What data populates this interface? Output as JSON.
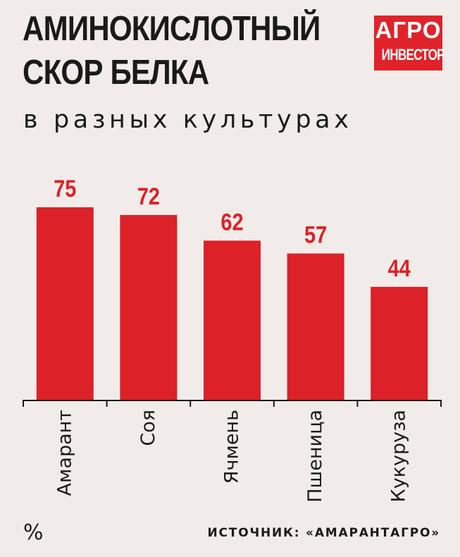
{
  "header": {
    "title_line1": "АМИНОКИСЛОТНЫЙ",
    "title_line2": "СКОР БЕЛКА",
    "subtitle": "в разных культурах"
  },
  "logo": {
    "line1": "АГРО",
    "line2": "ИНВЕСТОР"
  },
  "footer": {
    "unit": "%",
    "source": "ИСТОЧНИК: «АМАРАНТАГРО»"
  },
  "colors": {
    "bar": "#dc2128",
    "label": "#dc2128",
    "axis": "#1a1a1a",
    "background": "#f1ece9"
  },
  "chart_data": {
    "type": "bar",
    "categories": [
      "Амарант",
      "Соя",
      "Ячмень",
      "Пшеница",
      "Кукуруза"
    ],
    "values": [
      75,
      72,
      62,
      57,
      44
    ],
    "title": "АМИНОКИСЛОТНЫЙ СКОР БЕЛКА",
    "subtitle": "в разных культурах",
    "ylabel": "%",
    "ylim": [
      0,
      75
    ],
    "grid": false,
    "legend": "none"
  }
}
